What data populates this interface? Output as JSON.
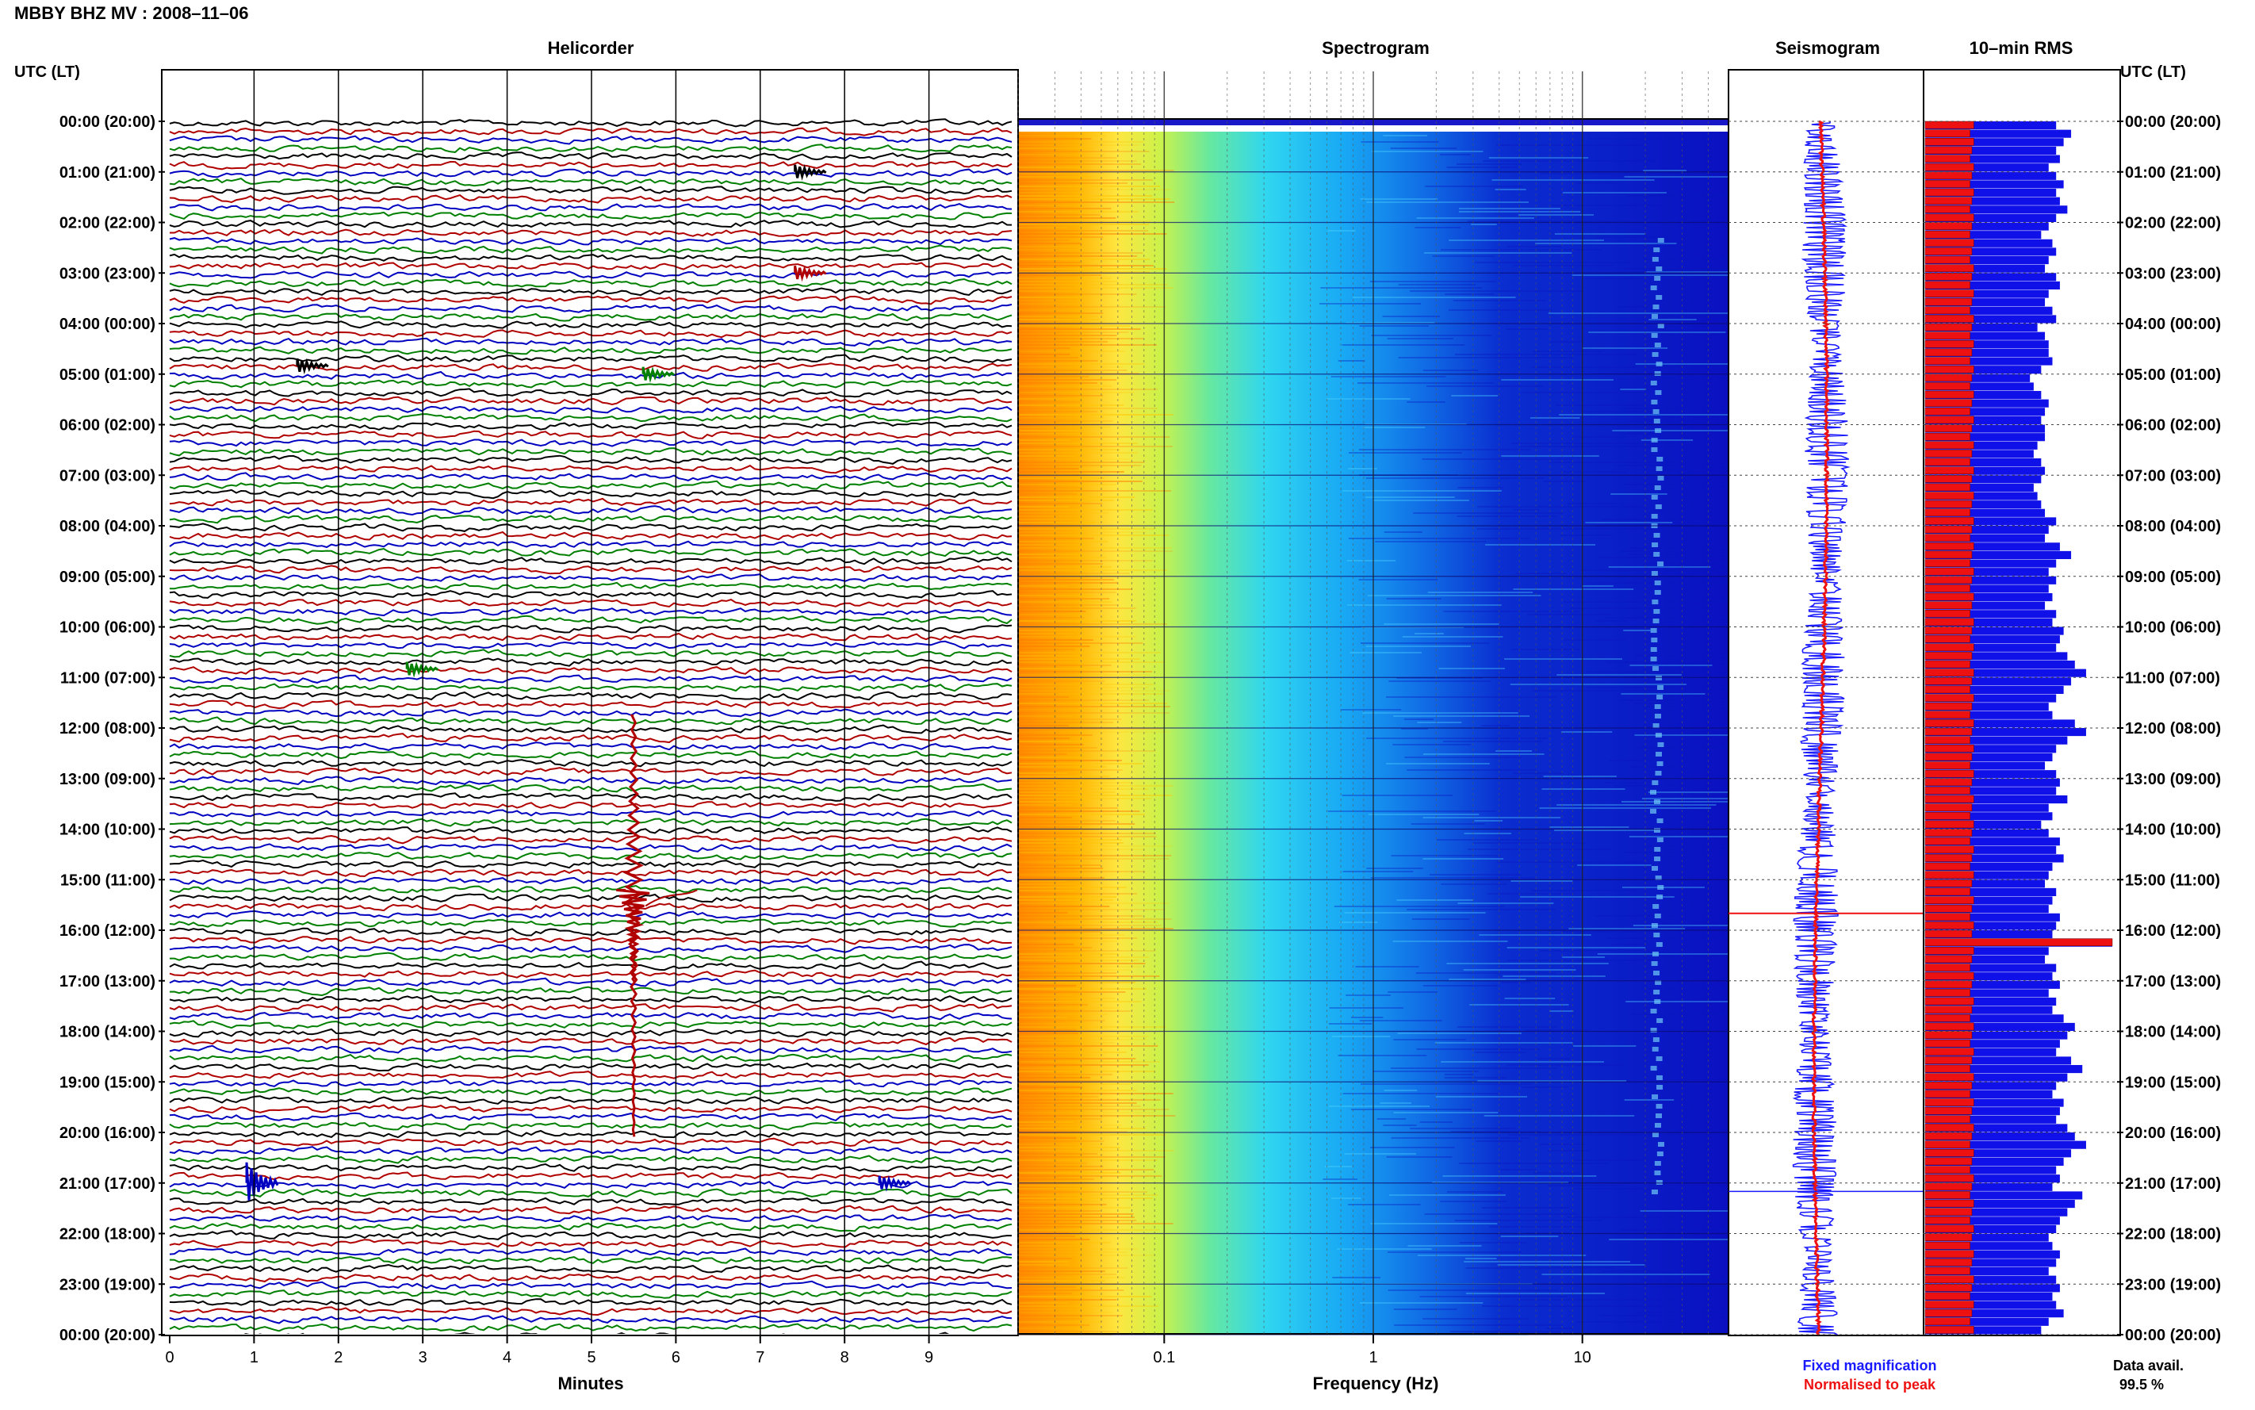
{
  "header": {
    "station_title": "MBBY BHZ MV : 2008–11–06"
  },
  "panels": {
    "helicorder_title": "Helicorder",
    "spectrogram_title": "Spectrogram",
    "seismogram_title": "Seismogram",
    "rms_title": "10–min RMS"
  },
  "axis_labels": {
    "left_time_header": "UTC (LT)",
    "right_time_header": "UTC (LT)",
    "helicorder_x": "Minutes",
    "spectrogram_x": "Frequency (Hz)"
  },
  "legend": {
    "fixed": "Fixed magnification",
    "normalised": "Normalised to peak",
    "fixed_color": "#1a1aff",
    "normalised_color": "#ee1111"
  },
  "data_availability": {
    "label": "Data avail.",
    "value": "99.5 %"
  },
  "colors": {
    "trace_cycle": [
      "#000000",
      "#b00000",
      "#0000c0",
      "#008000"
    ],
    "rms_fixed": "#1010e8",
    "rms_norm": "#ee1111",
    "spectrogram_low": "#ff9900",
    "spectrogram_mid": "#33ddff",
    "spectrogram_high": "#0a12c8"
  },
  "chart_data": [
    {
      "type": "line",
      "title": "Helicorder",
      "xlabel": "Minutes",
      "ylabel": "UTC (LT)",
      "xlim": [
        0,
        10
      ],
      "x_ticks": [
        "0",
        "1",
        "2",
        "3",
        "4",
        "5",
        "6",
        "7",
        "8",
        "9"
      ],
      "time_labels": [
        "00:00 (20:00)",
        "01:00 (21:00)",
        "02:00 (22:00)",
        "03:00 (23:00)",
        "04:00 (00:00)",
        "05:00 (01:00)",
        "06:00 (02:00)",
        "07:00 (03:00)",
        "08:00 (04:00)",
        "09:00 (05:00)",
        "10:00 (06:00)",
        "11:00 (07:00)",
        "12:00 (08:00)",
        "13:00 (09:00)",
        "14:00 (10:00)",
        "15:00 (11:00)",
        "16:00 (12:00)",
        "17:00 (13:00)",
        "18:00 (14:00)",
        "19:00 (15:00)",
        "20:00 (16:00)",
        "21:00 (17:00)",
        "22:00 (18:00)",
        "23:00 (19:00)",
        "00:00 (20:00)"
      ],
      "traces_per_hour": 6,
      "trace_count": 144,
      "grid": true,
      "events": [
        {
          "time": "15:50",
          "minute": 5.5,
          "note": "large event"
        },
        {
          "time": "21:00",
          "minute": 1.1
        },
        {
          "time": "10:50",
          "minute": 3.0
        },
        {
          "time": "01:00",
          "minute": 7.6
        },
        {
          "time": "03:00",
          "minute": 7.6
        },
        {
          "time": "21:00",
          "minute": 8.6
        },
        {
          "time": "05:00",
          "minute": 5.8
        },
        {
          "time": "04:50",
          "minute": 1.7
        }
      ]
    },
    {
      "type": "heatmap",
      "title": "Spectrogram",
      "xlabel": "Frequency (Hz)",
      "x_scale": "log",
      "xlim": [
        0.02,
        50
      ],
      "x_ticks": [
        "0.1",
        "1",
        "10"
      ],
      "ylim_hours": [
        0,
        24
      ],
      "colormap": "jet"
    },
    {
      "type": "line",
      "title": "Seismogram",
      "series": [
        {
          "name": "Fixed magnification",
          "color": "#1a1aff"
        },
        {
          "name": "Normalised to peak",
          "color": "#ee1111"
        }
      ],
      "ylim_hours": [
        0,
        24
      ]
    },
    {
      "type": "bar",
      "title": "10–min RMS",
      "orientation": "horizontal",
      "bins_per_hour": 6,
      "series": [
        {
          "name": "Fixed magnification",
          "color": "#1010e8",
          "values": [
            0.7,
            0.78,
            0.74,
            0.7,
            0.72,
            0.66,
            0.7,
            0.74,
            0.7,
            0.72,
            0.76,
            0.7,
            0.66,
            0.62,
            0.68,
            0.7,
            0.66,
            0.64,
            0.7,
            0.72,
            0.66,
            0.64,
            0.68,
            0.7,
            0.6,
            0.64,
            0.66,
            0.66,
            0.68,
            0.62,
            0.56,
            0.58,
            0.62,
            0.66,
            0.64,
            0.62,
            0.64,
            0.64,
            0.6,
            0.58,
            0.62,
            0.64,
            0.62,
            0.58,
            0.6,
            0.62,
            0.64,
            0.7,
            0.66,
            0.64,
            0.72,
            0.78,
            0.7,
            0.66,
            0.7,
            0.66,
            0.68,
            0.64,
            0.7,
            0.68,
            0.74,
            0.72,
            0.7,
            0.76,
            0.8,
            0.86,
            0.78,
            0.74,
            0.7,
            0.66,
            0.68,
            0.8,
            0.86,
            0.76,
            0.7,
            0.68,
            0.64,
            0.7,
            0.72,
            0.7,
            0.76,
            0.66,
            0.68,
            0.62,
            0.66,
            0.72,
            0.7,
            0.74,
            0.68,
            0.66,
            0.64,
            0.7,
            0.68,
            0.66,
            0.72,
            0.7,
            0.68,
            1.0,
            0.66,
            0.64,
            0.7,
            0.68,
            0.72,
            0.66,
            0.7,
            0.68,
            0.74,
            0.8,
            0.76,
            0.72,
            0.7,
            0.78,
            0.84,
            0.76,
            0.7,
            0.68,
            0.74,
            0.72,
            0.7,
            0.76,
            0.8,
            0.86,
            0.78,
            0.74,
            0.7,
            0.72,
            0.68,
            0.84,
            0.8,
            0.76,
            0.72,
            0.7,
            0.66,
            0.68,
            0.72,
            0.7,
            0.66,
            0.7,
            0.72,
            0.68,
            0.7,
            0.74,
            0.66,
            0.62
          ]
        },
        {
          "name": "Normalised to peak",
          "color": "#ee1111",
          "values": [
            0.26,
            0.24,
            0.26,
            0.25,
            0.24,
            0.26,
            0.25,
            0.24,
            0.26,
            0.25,
            0.24,
            0.26,
            0.25,
            0.24,
            0.26,
            0.25,
            0.24,
            0.26,
            0.25,
            0.24,
            0.26,
            0.25,
            0.24,
            0.26,
            0.25,
            0.24,
            0.26,
            0.25,
            0.24,
            0.26,
            0.25,
            0.24,
            0.26,
            0.25,
            0.24,
            0.26,
            0.25,
            0.24,
            0.26,
            0.25,
            0.24,
            0.26,
            0.25,
            0.24,
            0.26,
            0.25,
            0.24,
            0.26,
            0.25,
            0.24,
            0.26,
            0.25,
            0.24,
            0.26,
            0.25,
            0.24,
            0.26,
            0.25,
            0.24,
            0.26,
            0.25,
            0.24,
            0.26,
            0.25,
            0.24,
            0.26,
            0.25,
            0.24,
            0.26,
            0.25,
            0.24,
            0.26,
            0.25,
            0.24,
            0.26,
            0.25,
            0.24,
            0.26,
            0.25,
            0.24,
            0.26,
            0.25,
            0.24,
            0.26,
            0.25,
            0.24,
            0.26,
            0.25,
            0.24,
            0.26,
            0.25,
            0.24,
            0.26,
            0.25,
            0.24,
            0.26,
            0.25,
            1.0,
            0.26,
            0.25,
            0.24,
            0.26,
            0.25,
            0.24,
            0.26,
            0.25,
            0.24,
            0.26,
            0.25,
            0.24,
            0.26,
            0.25,
            0.24,
            0.26,
            0.25,
            0.24,
            0.26,
            0.25,
            0.24,
            0.26,
            0.25,
            0.24,
            0.26,
            0.25,
            0.24,
            0.26,
            0.25,
            0.24,
            0.26,
            0.25,
            0.24,
            0.26,
            0.25,
            0.24,
            0.26,
            0.25,
            0.24,
            0.26,
            0.25,
            0.24,
            0.26,
            0.25,
            0.24,
            0.26
          ]
        }
      ]
    }
  ]
}
